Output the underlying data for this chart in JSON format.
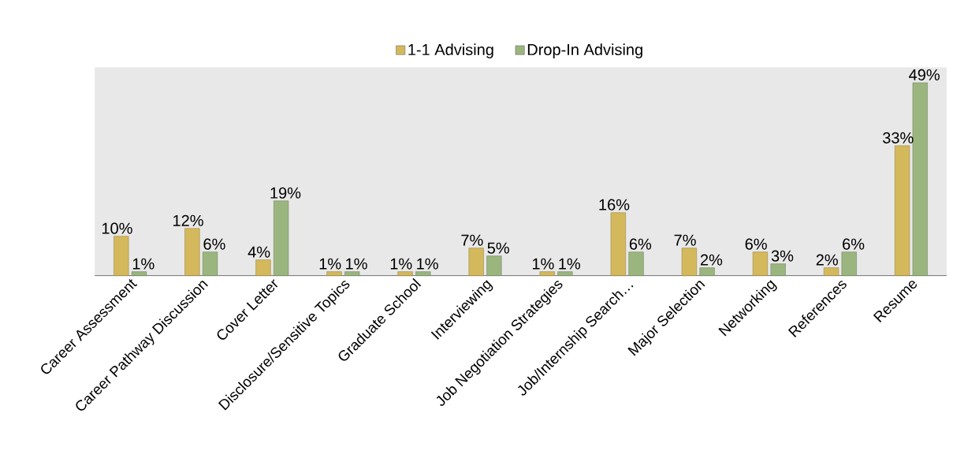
{
  "chart_data": {
    "type": "bar",
    "categories": [
      "Career Assessment",
      "Career Pathway Discussion",
      "Cover Letter",
      "Disclosure/Sensitive Topics",
      "Graduate School",
      "Interviewing",
      "Job Negotiation Strategies",
      "Job/Internship Search…",
      "Major Selection",
      "Networking",
      "References",
      "Resume"
    ],
    "series": [
      {
        "name": "1-1 Advising",
        "color": "#d4b85c",
        "values": [
          10,
          12,
          4,
          1,
          1,
          7,
          1,
          16,
          7,
          6,
          2,
          33
        ],
        "value_labels": [
          "10%",
          "12%",
          "4%",
          "1%",
          "1%",
          "7%",
          "1%",
          "16%",
          "7%",
          "6%",
          "2%",
          "33%"
        ]
      },
      {
        "name": "Drop-In Advising",
        "color": "#9bb57f",
        "values": [
          1,
          6,
          19,
          1,
          1,
          5,
          1,
          6,
          2,
          3,
          6,
          49
        ],
        "value_labels": [
          "1%",
          "6%",
          "19%",
          "1%",
          "1%",
          "5%",
          "1%",
          "6%",
          "2%",
          "3%",
          "6%",
          "49%"
        ]
      }
    ],
    "legend": "top"
  }
}
